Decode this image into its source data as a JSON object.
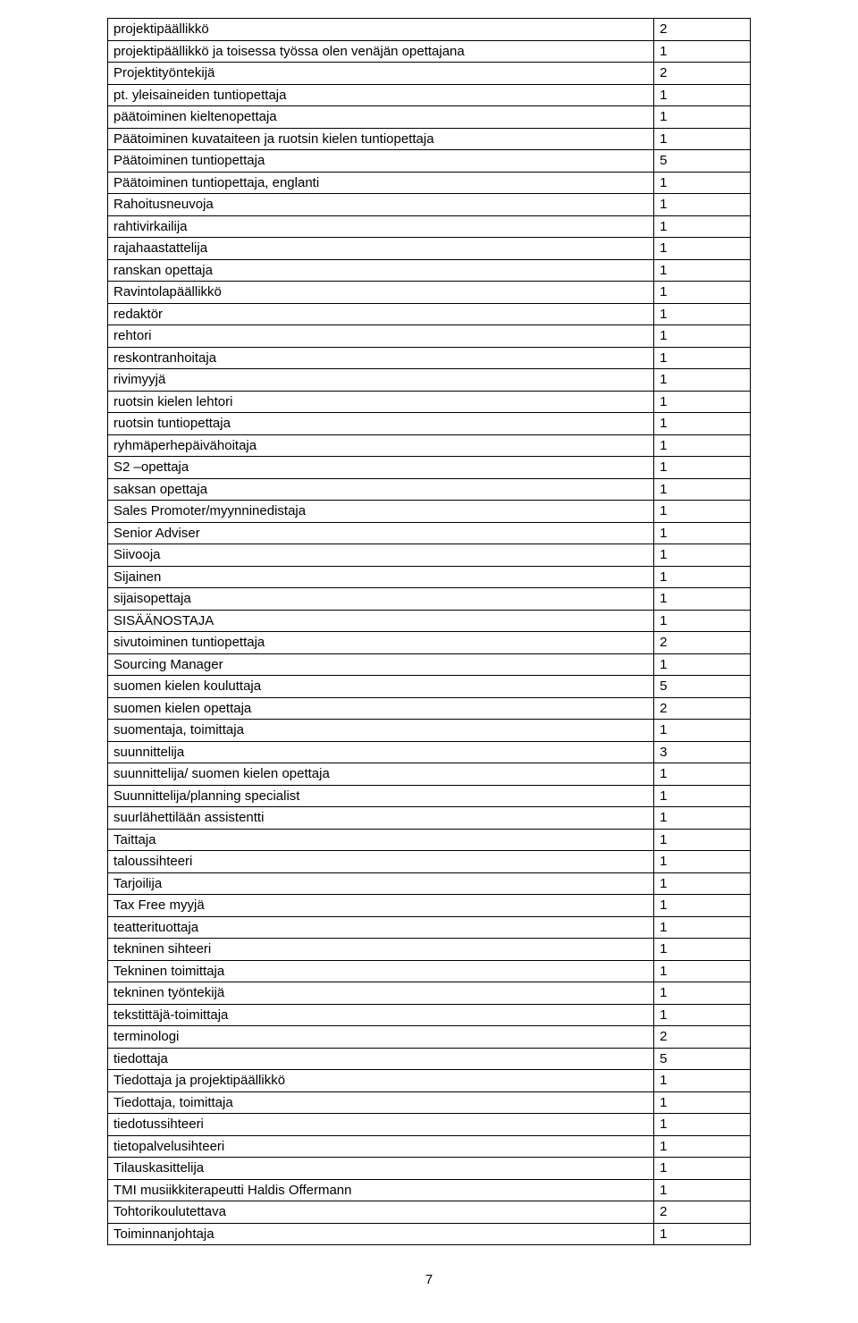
{
  "rows": [
    {
      "label": "projektipäällikkö",
      "value": "2"
    },
    {
      "label": "projektipäällikkö ja toisessa työssa olen venäjän opettajana",
      "value": "1"
    },
    {
      "label": "Projektityöntekijä",
      "value": "2"
    },
    {
      "label": "pt. yleisaineiden tuntiopettaja",
      "value": "1"
    },
    {
      "label": "päätoiminen kieltenopettaja",
      "value": "1"
    },
    {
      "label": "Päätoiminen kuvataiteen ja ruotsin kielen tuntiopettaja",
      "value": "1"
    },
    {
      "label": "Päätoiminen tuntiopettaja",
      "value": "5"
    },
    {
      "label": "Päätoiminen tuntiopettaja, englanti",
      "value": "1"
    },
    {
      "label": "Rahoitusneuvoja",
      "value": "1"
    },
    {
      "label": "rahtivirkailija",
      "value": "1"
    },
    {
      "label": "rajahaastattelija",
      "value": "1"
    },
    {
      "label": "ranskan opettaja",
      "value": "1"
    },
    {
      "label": "Ravintolapäällikkö",
      "value": "1"
    },
    {
      "label": "redaktör",
      "value": "1"
    },
    {
      "label": "rehtori",
      "value": "1"
    },
    {
      "label": "reskontranhoitaja",
      "value": "1"
    },
    {
      "label": "rivimyyjä",
      "value": "1"
    },
    {
      "label": "ruotsin kielen lehtori",
      "value": "1"
    },
    {
      "label": "ruotsin tuntiopettaja",
      "value": "1"
    },
    {
      "label": "ryhmäperhepäivähoitaja",
      "value": "1"
    },
    {
      "label": "S2 –opettaja",
      "value": "1"
    },
    {
      "label": "saksan opettaja",
      "value": "1"
    },
    {
      "label": "Sales Promoter/myynninedistaja",
      "value": "1"
    },
    {
      "label": "Senior Adviser",
      "value": "1"
    },
    {
      "label": "Siivooja",
      "value": "1"
    },
    {
      "label": "Sijainen",
      "value": "1"
    },
    {
      "label": "sijaisopettaja",
      "value": "1"
    },
    {
      "label": "SISÄÄNOSTAJA",
      "value": "1"
    },
    {
      "label": "sivutoiminen tuntiopettaja",
      "value": "2"
    },
    {
      "label": "Sourcing Manager",
      "value": "1"
    },
    {
      "label": "suomen kielen kouluttaja",
      "value": "5"
    },
    {
      "label": "suomen kielen opettaja",
      "value": "2"
    },
    {
      "label": "suomentaja, toimittaja",
      "value": "1"
    },
    {
      "label": "suunnittelija",
      "value": "3"
    },
    {
      "label": "suunnittelija/ suomen kielen opettaja",
      "value": "1"
    },
    {
      "label": "Suunnittelija/planning specialist",
      "value": "1"
    },
    {
      "label": "suurlähettilään assistentti",
      "value": "1"
    },
    {
      "label": "Taittaja",
      "value": "1"
    },
    {
      "label": "taloussihteeri",
      "value": "1"
    },
    {
      "label": "Tarjoilija",
      "value": "1"
    },
    {
      "label": "Tax Free myyjä",
      "value": "1"
    },
    {
      "label": "teatterituottaja",
      "value": "1"
    },
    {
      "label": "tekninen sihteeri",
      "value": "1"
    },
    {
      "label": "Tekninen toimittaja",
      "value": "1"
    },
    {
      "label": "tekninen työntekijä",
      "value": "1"
    },
    {
      "label": "tekstittäjä-toimittaja",
      "value": "1"
    },
    {
      "label": "terminologi",
      "value": "2"
    },
    {
      "label": "tiedottaja",
      "value": "5"
    },
    {
      "label": "Tiedottaja ja projektipäällikkö",
      "value": "1"
    },
    {
      "label": "Tiedottaja, toimittaja",
      "value": "1"
    },
    {
      "label": "tiedotussihteeri",
      "value": "1"
    },
    {
      "label": "tietopalvelusihteeri",
      "value": "1"
    },
    {
      "label": "Tilauskasittelija",
      "value": "1"
    },
    {
      "label": "TMI musiikkiterapeutti Haldis Offermann",
      "value": "1"
    },
    {
      "label": "Tohtorikoulutettava",
      "value": "2"
    },
    {
      "label": "Toiminnanjohtaja",
      "value": "1"
    }
  ],
  "pageNumber": "7"
}
